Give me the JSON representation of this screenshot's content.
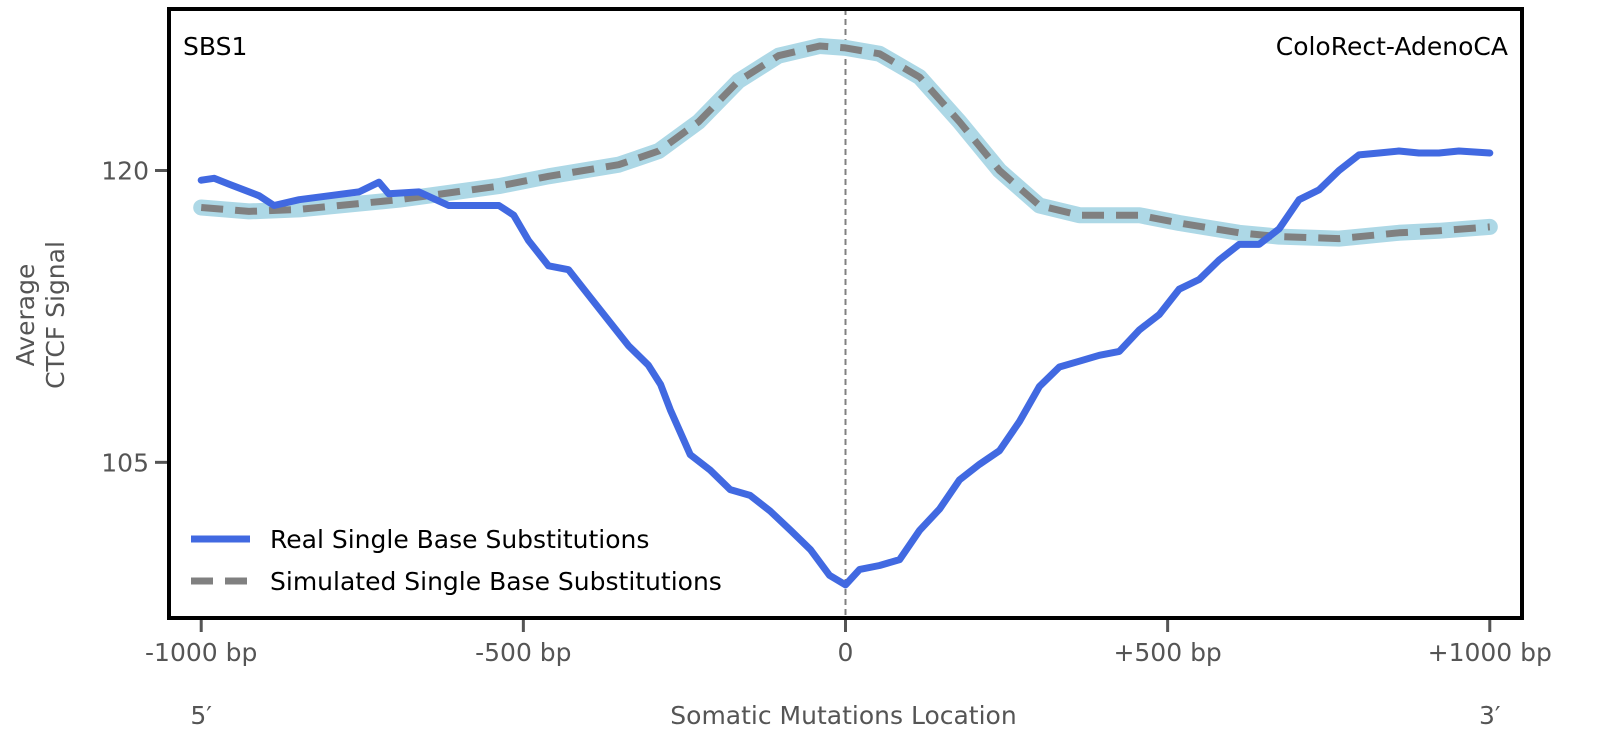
{
  "chart_data": {
    "type": "line",
    "title_left": "SBS1",
    "title_right": "ColoRect-AdenoCA",
    "xlabel": "Somatic Mutations Location",
    "ylabel_line1": "Average",
    "ylabel_line2": "CTCF Signal",
    "x_end_labels": {
      "left": "5′",
      "right": "3′"
    },
    "xlim": [
      -1050,
      1050
    ],
    "ylim": [
      97.0,
      128.3
    ],
    "xticks": [
      {
        "value": -1000,
        "label": "-1000 bp"
      },
      {
        "value": -500,
        "label": "-500 bp"
      },
      {
        "value": 0,
        "label": "0"
      },
      {
        "value": 500,
        "label": "+500 bp"
      },
      {
        "value": 1000,
        "label": "+1000 bp"
      }
    ],
    "yticks": [
      {
        "value": 105,
        "label": "105"
      },
      {
        "value": 120,
        "label": "120"
      }
    ],
    "center_line": 0,
    "legend_position": "lower-left",
    "series": [
      {
        "name": "Real Single Base Substitutions",
        "color": "#4169E1",
        "style": "solid",
        "x": [
          -1000,
          -980,
          -957,
          -910,
          -887,
          -848,
          -802,
          -755,
          -724,
          -709,
          -662,
          -616,
          -569,
          -538,
          -515,
          -492,
          -461,
          -430,
          -399,
          -368,
          -337,
          -306,
          -287,
          -272,
          -241,
          -210,
          -179,
          -148,
          -117,
          -85,
          -54,
          -25,
          0,
          22,
          53,
          84,
          115,
          146,
          177,
          208,
          239,
          270,
          301,
          332,
          363,
          394,
          425,
          456,
          487,
          518,
          549,
          580,
          611,
          642,
          673,
          704,
          735,
          766,
          797,
          828,
          859,
          890,
          921,
          952,
          1000
        ],
        "y": [
          119.5,
          119.6,
          119.3,
          118.7,
          118.2,
          118.5,
          118.7,
          118.9,
          119.4,
          118.8,
          118.9,
          118.2,
          118.2,
          118.2,
          117.7,
          116.4,
          115.1,
          114.9,
          113.6,
          112.3,
          111.0,
          110.0,
          109.0,
          107.7,
          105.4,
          104.6,
          103.6,
          103.3,
          102.5,
          101.5,
          100.5,
          99.2,
          98.7,
          99.5,
          99.7,
          100.0,
          101.5,
          102.6,
          104.1,
          104.9,
          105.6,
          107.1,
          108.9,
          109.9,
          110.2,
          110.5,
          110.7,
          111.8,
          112.6,
          113.9,
          114.4,
          115.4,
          116.2,
          116.2,
          117.0,
          118.5,
          119.0,
          120.0,
          120.8,
          120.9,
          121.0,
          120.9,
          120.9,
          121.0,
          120.9
        ]
      },
      {
        "name": "Simulated Single Base Substitutions",
        "color": "#808080",
        "band_color": "#ADD8E6",
        "style": "dashed",
        "x": [
          -1000,
          -926,
          -848,
          -693,
          -538,
          -461,
          -352,
          -290,
          -228,
          -166,
          -104,
          -40,
          0,
          53,
          115,
          177,
          239,
          301,
          363,
          456,
          518,
          611,
          673,
          766,
          859,
          921,
          1000
        ],
        "y": [
          118.1,
          117.9,
          118.0,
          118.5,
          119.2,
          119.7,
          120.3,
          121.0,
          122.5,
          124.6,
          125.9,
          126.4,
          126.3,
          126.0,
          124.8,
          122.5,
          120.0,
          118.2,
          117.7,
          117.7,
          117.3,
          116.8,
          116.6,
          116.5,
          116.8,
          116.9,
          117.1
        ]
      }
    ]
  }
}
